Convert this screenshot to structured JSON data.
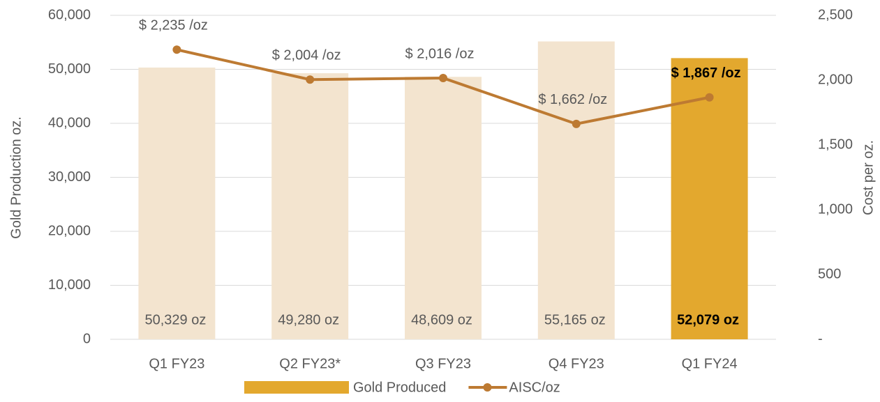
{
  "chart_data": {
    "type": "bar_line",
    "categories": [
      "Q1 FY23",
      "Q2 FY23*",
      "Q3 FY23",
      "Q4 FY23",
      "Q1 FY24"
    ],
    "ylabel": "Gold Production oz.",
    "y2label": "Cost per oz.",
    "ylim": [
      0,
      60000
    ],
    "yticks": [
      0,
      {
        "value": 10000,
        "label": "10,000"
      },
      {
        "value": 20000,
        "label": "20,000"
      },
      {
        "value": 30000,
        "label": "30,000"
      },
      {
        "value": 40000,
        "label": "40,000"
      },
      {
        "value": 50000,
        "label": "50,000"
      },
      {
        "value": 60000,
        "label": "60,000"
      }
    ],
    "y2lim": [
      0,
      2500
    ],
    "y2ticks": [
      {
        "value": 0,
        "label": "-"
      },
      500,
      {
        "value": 1000,
        "label": "1,000"
      },
      {
        "value": 1500,
        "label": "1,500"
      },
      {
        "value": 2000,
        "label": "2,000"
      },
      {
        "value": 2500,
        "label": "2,500"
      }
    ],
    "grid": true,
    "legend": "bottom",
    "series": [
      {
        "name": "Gold Produced",
        "type": "bar",
        "color": "#e3a82e",
        "colors": [
          "#f3e4cf",
          "#f3e4cf",
          "#f3e4cf",
          "#f3e4cf",
          "#e3a82e"
        ],
        "bold_labels": [
          false,
          false,
          false,
          false,
          true
        ],
        "values": [
          50329,
          49280,
          48609,
          55165,
          52079
        ],
        "value_labels": [
          "50,329 oz",
          "49,280 oz",
          "48,609 oz",
          "55,165 oz",
          "52,079 oz"
        ]
      },
      {
        "name": "AISC/oz",
        "type": "line",
        "axis": "y2",
        "color": "#bd7a32",
        "bold_labels": [
          false,
          false,
          false,
          false,
          true
        ],
        "values": [
          2235,
          2004,
          2016,
          1662,
          1867
        ],
        "value_labels": [
          "$ 2,235 /oz",
          "$ 2,004 /oz",
          "$ 2,016 /oz",
          "$ 1,662 /oz",
          "$ 1,867 /oz"
        ]
      }
    ]
  }
}
